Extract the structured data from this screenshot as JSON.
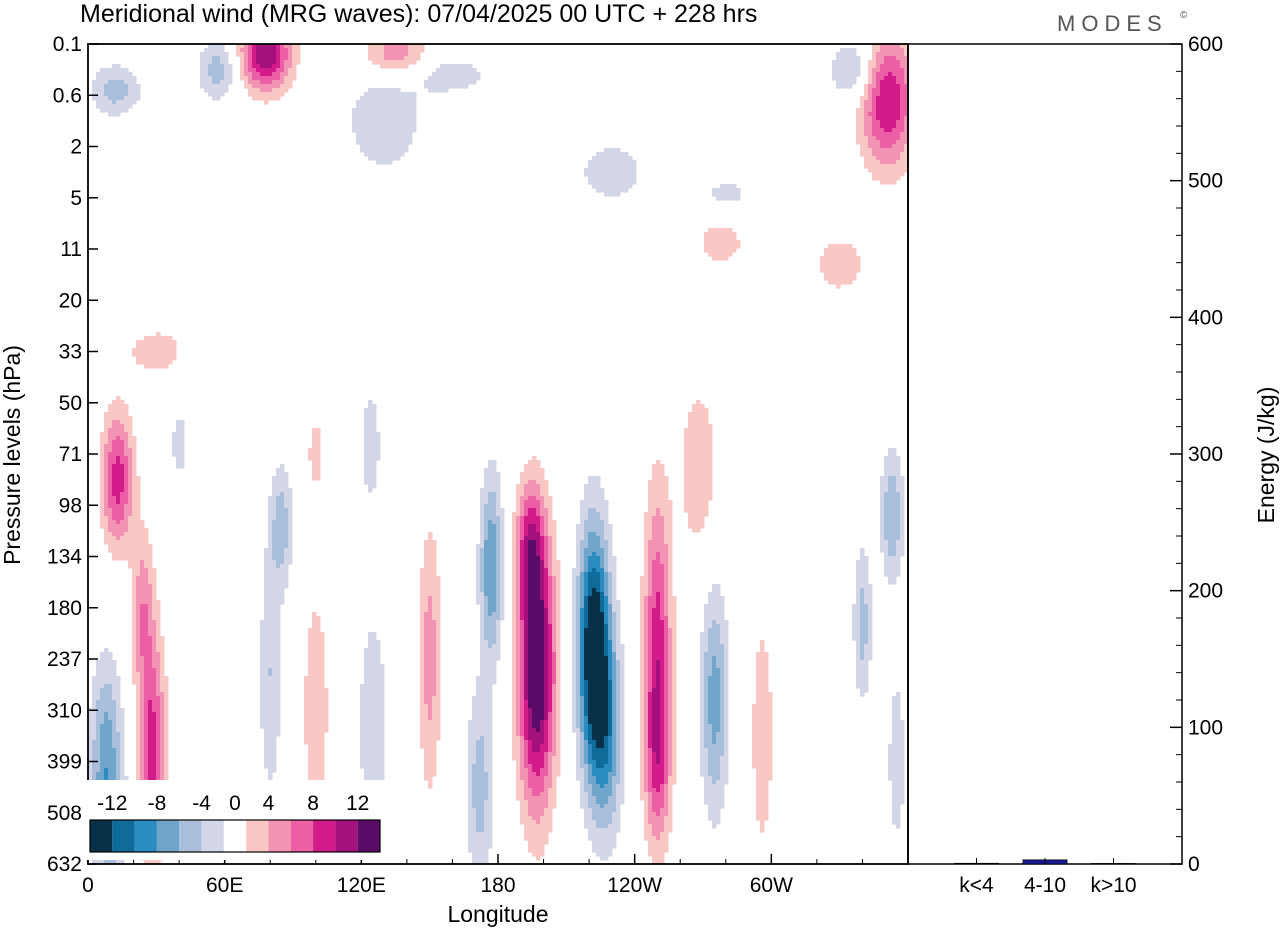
{
  "title": "Meridional wind (MRG waves):  07/04/2025  00 UTC  + 228 hrs",
  "logo": "MODES",
  "logo_mark": "©",
  "colors": {
    "neg": [
      "#083049",
      "#0f6b9a",
      "#2a8cc0",
      "#6fa5cb",
      "#a8bedb",
      "#d3d6e6"
    ],
    "pos": [
      "#f9c8c4",
      "#f494b4",
      "#ec5fa6",
      "#d21c8c",
      "#a3127c",
      "#5a0a67"
    ],
    "bar_fill": "#1a1a9e",
    "zero": "#ffffff"
  },
  "chart_data": [
    {
      "type": "heatmap",
      "name": "meridional-wind-contour",
      "xlabel": "Longitude",
      "ylabel": "Pressure levels (hPa)",
      "x_ticks": [
        "0",
        "60E",
        "120E",
        "180",
        "120W",
        "60W"
      ],
      "x_tick_deg": [
        0,
        60,
        120,
        180,
        240,
        300
      ],
      "xlim_deg": [
        0,
        360
      ],
      "y_ticks": [
        "0.1",
        "0.6",
        "2",
        "5",
        "11",
        "20",
        "33",
        "50",
        "71",
        "98",
        "134",
        "180",
        "237",
        "310",
        "399",
        "508",
        "632"
      ],
      "colorbar": {
        "tick_labels": [
          "-12",
          "-8",
          "-4",
          "0",
          "4",
          "8",
          "12"
        ],
        "levels": [
          -14,
          -12,
          -10,
          -8,
          -6,
          -4,
          -2,
          2,
          4,
          6,
          8,
          10,
          12,
          14
        ]
      },
      "features": [
        {
          "lon": 197,
          "lev": 12.2,
          "dlon": 8,
          "dlev": 2.6,
          "amp": 15
        },
        {
          "lon": 194,
          "lev": 9.8,
          "dlon": 6,
          "dlev": 1.2,
          "amp": 7
        },
        {
          "lon": 222,
          "lev": 11.8,
          "dlon": 7,
          "dlev": 2.4,
          "amp": -15
        },
        {
          "lon": 228,
          "lev": 13.5,
          "dlon": 7,
          "dlev": 2.0,
          "amp": -7
        },
        {
          "lon": 250,
          "lev": 11.8,
          "dlon": 6,
          "dlev": 3.0,
          "amp": 9
        },
        {
          "lon": 250,
          "lev": 14.0,
          "dlon": 6,
          "dlev": 1.6,
          "amp": 5
        },
        {
          "lon": 177,
          "lev": 10.2,
          "dlon": 5,
          "dlev": 1.8,
          "amp": -8
        },
        {
          "lon": 172,
          "lev": 14.5,
          "dlon": 6,
          "dlev": 2.0,
          "amp": -5
        },
        {
          "lon": 13,
          "lev": 8.5,
          "dlon": 7,
          "dlev": 1.3,
          "amp": 9
        },
        {
          "lon": 28,
          "lev": 13.8,
          "dlon": 6,
          "dlev": 2.2,
          "amp": 9
        },
        {
          "lon": 24,
          "lev": 11.0,
          "dlon": 5,
          "dlev": 1.5,
          "amp": 5
        },
        {
          "lon": 8,
          "lev": 13.8,
          "dlon": 7,
          "dlev": 1.8,
          "amp": -7
        },
        {
          "lon": 10,
          "lev": 15.3,
          "dlon": 8,
          "dlev": 1.1,
          "amp": -4
        },
        {
          "lon": 80,
          "lev": 12.3,
          "dlon": 5,
          "dlev": 2.5,
          "amp": -4
        },
        {
          "lon": 85,
          "lev": 9.4,
          "dlon": 5,
          "dlev": 1.2,
          "amp": -5
        },
        {
          "lon": 100,
          "lev": 13.0,
          "dlon": 6,
          "dlev": 2.5,
          "amp": 3.6
        },
        {
          "lon": 125,
          "lev": 13.3,
          "dlon": 7,
          "dlev": 2.5,
          "amp": -3.5
        },
        {
          "lon": 150,
          "lev": 12.0,
          "dlon": 5,
          "dlev": 2.6,
          "amp": 5
        },
        {
          "lon": 275,
          "lev": 12.8,
          "dlon": 6,
          "dlev": 2.2,
          "amp": -7
        },
        {
          "lon": 296,
          "lev": 13.5,
          "dlon": 5,
          "dlev": 2.4,
          "amp": 3.6
        },
        {
          "lon": 340,
          "lev": 11.3,
          "dlon": 4,
          "dlev": 1.5,
          "amp": -5
        },
        {
          "lon": 353,
          "lev": 9.2,
          "dlon": 5,
          "dlev": 1.3,
          "amp": -6
        },
        {
          "lon": 355,
          "lev": 14.0,
          "dlon": 4,
          "dlev": 1.8,
          "amp": -3.5
        },
        {
          "lon": 268,
          "lev": 8.3,
          "dlon": 9,
          "dlev": 1.8,
          "amp": 3.5
        },
        {
          "lon": 124,
          "lev": 7.8,
          "dlon": 5,
          "dlev": 1.3,
          "amp": -3.2
        },
        {
          "lon": 40,
          "lev": 7.8,
          "dlon": 4,
          "dlev": 0.8,
          "amp": -3.0
        },
        {
          "lon": 100,
          "lev": 8.0,
          "dlon": 4,
          "dlev": 0.8,
          "amp": 3.0
        },
        {
          "lon": 78,
          "lev": 0.2,
          "dlon": 11,
          "dlev": 0.7,
          "amp": 12
        },
        {
          "lon": 135,
          "lev": 0.2,
          "dlon": 14,
          "dlev": 0.45,
          "amp": 6
        },
        {
          "lon": 351,
          "lev": 1.1,
          "dlon": 12,
          "dlev": 1.3,
          "amp": 10
        },
        {
          "lon": 336,
          "lev": 0.5,
          "dlon": 10,
          "dlev": 0.6,
          "amp": -5
        },
        {
          "lon": 12,
          "lev": 0.9,
          "dlon": 11,
          "dlev": 0.5,
          "amp": -5
        },
        {
          "lon": 57,
          "lev": 0.5,
          "dlon": 9,
          "dlev": 0.6,
          "amp": -5
        },
        {
          "lon": 130,
          "lev": 1.5,
          "dlon": 20,
          "dlev": 1.2,
          "amp": -3.2
        },
        {
          "lon": 230,
          "lev": 2.5,
          "dlon": 18,
          "dlev": 0.7,
          "amp": -3.0
        },
        {
          "lon": 280,
          "lev": 3.0,
          "dlon": 15,
          "dlev": 0.5,
          "amp": -2.8
        },
        {
          "lon": 278,
          "lev": 3.8,
          "dlon": 12,
          "dlev": 0.6,
          "amp": 3.2
        },
        {
          "lon": 330,
          "lev": 4.3,
          "dlon": 12,
          "dlev": 0.6,
          "amp": 3.3
        },
        {
          "lon": 30,
          "lev": 6.0,
          "dlon": 14,
          "dlev": 0.5,
          "amp": 3.2
        },
        {
          "lon": 160,
          "lev": 0.6,
          "dlon": 18,
          "dlev": 0.4,
          "amp": -3.0
        }
      ]
    },
    {
      "type": "bar",
      "name": "energy-bars",
      "ylabel": "Energy (J/kg)",
      "ylim": [
        0,
        600
      ],
      "y_ticks": [
        0,
        100,
        200,
        300,
        400,
        500,
        600
      ],
      "categories": [
        "k<4",
        "4-10",
        "k>10"
      ],
      "values": [
        0.5,
        3,
        0.3
      ]
    }
  ]
}
